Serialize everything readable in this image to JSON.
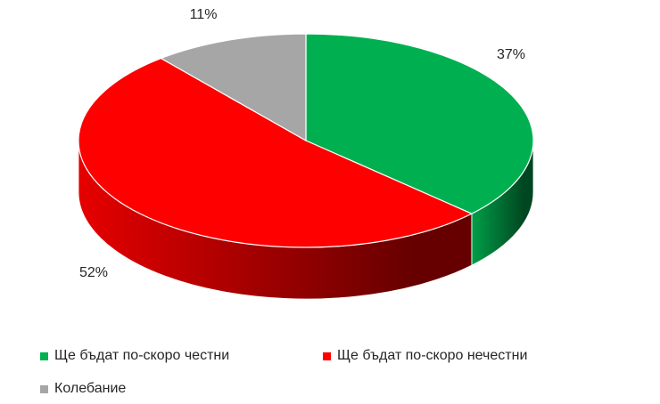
{
  "chart_data": {
    "type": "pie",
    "categories": [
      "Ще бъдат по-скоро честни",
      "Ще бъдат по-скоро нечестни",
      "Колебание"
    ],
    "values": [
      37,
      52,
      11
    ],
    "value_labels": [
      "37%",
      "52%",
      "11%"
    ],
    "colors": [
      "#00b050",
      "#ff0000",
      "#a6a6a6"
    ],
    "legend": "bottom"
  }
}
